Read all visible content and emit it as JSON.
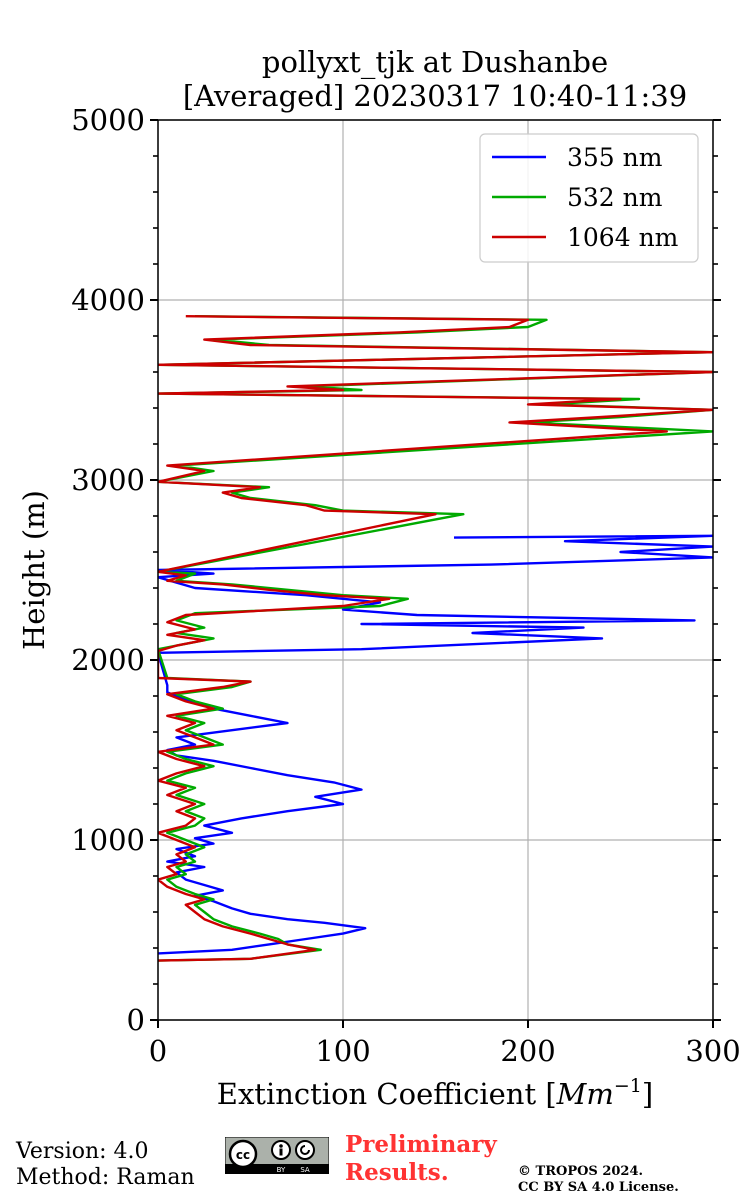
{
  "chart_data": {
    "type": "line",
    "title_line1": "pollyxt_tjk at Dushanbe",
    "title_line2": "[Averaged] 20230317 10:40-11:39",
    "xlabel": "Extinction Coefficient [",
    "xlabel_unit": "Mm",
    "xlabel_exp": "−1",
    "xlabel_close": "]",
    "ylabel": "Height (m)",
    "xlim": [
      0,
      300
    ],
    "ylim": [
      0,
      5000
    ],
    "xticks": [
      "0",
      "100",
      "200",
      "300"
    ],
    "yticks": [
      "0",
      "1000",
      "2000",
      "3000",
      "4000",
      "5000"
    ],
    "grid": true,
    "legend_position": "top-right",
    "series": [
      {
        "name": "355 nm",
        "color": "#0000ff",
        "points": [
          [
            0,
            370
          ],
          [
            40,
            390
          ],
          [
            60,
            420
          ],
          [
            80,
            450
          ],
          [
            100,
            480
          ],
          [
            112,
            510
          ],
          [
            90,
            540
          ],
          [
            70,
            560
          ],
          [
            50,
            590
          ],
          [
            40,
            620
          ],
          [
            30,
            660
          ],
          [
            20,
            690
          ],
          [
            35,
            720
          ],
          [
            25,
            750
          ],
          [
            15,
            780
          ],
          [
            10,
            820
          ],
          [
            25,
            850
          ],
          [
            5,
            880
          ],
          [
            20,
            910
          ],
          [
            10,
            950
          ],
          [
            30,
            980
          ],
          [
            20,
            1010
          ],
          [
            40,
            1040
          ],
          [
            25,
            1080
          ],
          [
            45,
            1120
          ],
          [
            70,
            1160
          ],
          [
            100,
            1200
          ],
          [
            85,
            1240
          ],
          [
            110,
            1280
          ],
          [
            95,
            1320
          ],
          [
            70,
            1360
          ],
          [
            50,
            1400
          ],
          [
            30,
            1440
          ],
          [
            10,
            1470
          ],
          [
            5,
            1500
          ],
          [
            20,
            1530
          ],
          [
            10,
            1570
          ],
          [
            40,
            1610
          ],
          [
            70,
            1650
          ],
          [
            50,
            1690
          ],
          [
            30,
            1730
          ],
          [
            15,
            1780
          ],
          [
            5,
            1820
          ],
          [
            5,
            1860
          ],
          [
            0,
            2040
          ],
          [
            110,
            2060
          ],
          [
            240,
            2120
          ],
          [
            170,
            2150
          ],
          [
            230,
            2180
          ],
          [
            110,
            2200
          ],
          [
            290,
            2220
          ],
          [
            140,
            2250
          ],
          [
            100,
            2280
          ],
          [
            120,
            2320
          ],
          [
            80,
            2360
          ],
          [
            20,
            2400
          ],
          [
            0,
            2460
          ],
          [
            30,
            2480
          ],
          [
            0,
            2500
          ],
          [
            180,
            2530
          ],
          [
            300,
            2570
          ],
          [
            250,
            2600
          ],
          [
            300,
            2630
          ],
          [
            220,
            2660
          ],
          [
            300,
            2690
          ],
          [
            160,
            2680
          ]
        ]
      },
      {
        "name": "532 nm",
        "color": "#00aa00",
        "points": [
          [
            0,
            330
          ],
          [
            50,
            340
          ],
          [
            88,
            390
          ],
          [
            70,
            420
          ],
          [
            65,
            450
          ],
          [
            55,
            480
          ],
          [
            40,
            520
          ],
          [
            30,
            560
          ],
          [
            25,
            600
          ],
          [
            20,
            640
          ],
          [
            30,
            670
          ],
          [
            20,
            700
          ],
          [
            10,
            740
          ],
          [
            5,
            780
          ],
          [
            15,
            810
          ],
          [
            10,
            850
          ],
          [
            20,
            880
          ],
          [
            15,
            920
          ],
          [
            25,
            960
          ],
          [
            15,
            1000
          ],
          [
            5,
            1040
          ],
          [
            20,
            1080
          ],
          [
            25,
            1120
          ],
          [
            15,
            1160
          ],
          [
            25,
            1200
          ],
          [
            10,
            1250
          ],
          [
            20,
            1290
          ],
          [
            5,
            1330
          ],
          [
            15,
            1370
          ],
          [
            30,
            1410
          ],
          [
            15,
            1450
          ],
          [
            5,
            1490
          ],
          [
            35,
            1530
          ],
          [
            25,
            1570
          ],
          [
            15,
            1610
          ],
          [
            25,
            1650
          ],
          [
            10,
            1690
          ],
          [
            35,
            1730
          ],
          [
            20,
            1770
          ],
          [
            10,
            1810
          ],
          [
            40,
            1850
          ],
          [
            50,
            1880
          ],
          [
            5,
            1900
          ],
          [
            0,
            2060
          ],
          [
            15,
            2090
          ],
          [
            30,
            2120
          ],
          [
            10,
            2150
          ],
          [
            25,
            2180
          ],
          [
            10,
            2220
          ],
          [
            20,
            2260
          ],
          [
            120,
            2300
          ],
          [
            135,
            2340
          ],
          [
            100,
            2360
          ],
          [
            70,
            2390
          ],
          [
            40,
            2420
          ],
          [
            10,
            2440
          ],
          [
            20,
            2480
          ],
          [
            0,
            2490
          ],
          [
            165,
            2810
          ],
          [
            100,
            2830
          ],
          [
            85,
            2860
          ],
          [
            50,
            2900
          ],
          [
            40,
            2930
          ],
          [
            60,
            2960
          ],
          [
            0,
            2990
          ],
          [
            30,
            3050
          ],
          [
            10,
            3080
          ],
          [
            300,
            3270
          ],
          [
            200,
            3320
          ],
          [
            250,
            3350
          ],
          [
            300,
            3390
          ],
          [
            210,
            3420
          ],
          [
            260,
            3450
          ],
          [
            0,
            3480
          ],
          [
            110,
            3500
          ],
          [
            80,
            3520
          ],
          [
            300,
            3600
          ],
          [
            0,
            3640
          ],
          [
            300,
            3710
          ],
          [
            60,
            3750
          ],
          [
            30,
            3780
          ],
          [
            140,
            3820
          ],
          [
            200,
            3850
          ],
          [
            210,
            3890
          ],
          [
            20,
            3910
          ]
        ]
      },
      {
        "name": "1064 nm",
        "color": "#cc0000",
        "points": [
          [
            0,
            330
          ],
          [
            50,
            340
          ],
          [
            85,
            390
          ],
          [
            70,
            420
          ],
          [
            60,
            450
          ],
          [
            50,
            480
          ],
          [
            35,
            520
          ],
          [
            25,
            560
          ],
          [
            20,
            600
          ],
          [
            15,
            640
          ],
          [
            25,
            670
          ],
          [
            15,
            700
          ],
          [
            5,
            740
          ],
          [
            0,
            780
          ],
          [
            10,
            810
          ],
          [
            5,
            850
          ],
          [
            15,
            880
          ],
          [
            10,
            920
          ],
          [
            20,
            960
          ],
          [
            10,
            1000
          ],
          [
            0,
            1040
          ],
          [
            15,
            1080
          ],
          [
            20,
            1120
          ],
          [
            10,
            1160
          ],
          [
            20,
            1200
          ],
          [
            5,
            1250
          ],
          [
            15,
            1290
          ],
          [
            0,
            1330
          ],
          [
            10,
            1370
          ],
          [
            25,
            1410
          ],
          [
            10,
            1450
          ],
          [
            0,
            1490
          ],
          [
            30,
            1530
          ],
          [
            20,
            1570
          ],
          [
            10,
            1610
          ],
          [
            20,
            1650
          ],
          [
            5,
            1690
          ],
          [
            30,
            1730
          ],
          [
            15,
            1770
          ],
          [
            5,
            1810
          ],
          [
            35,
            1850
          ],
          [
            50,
            1880
          ],
          [
            0,
            1900
          ],
          [
            0,
            2050
          ],
          [
            10,
            2080
          ],
          [
            25,
            2110
          ],
          [
            5,
            2140
          ],
          [
            20,
            2170
          ],
          [
            5,
            2210
          ],
          [
            15,
            2250
          ],
          [
            100,
            2300
          ],
          [
            125,
            2340
          ],
          [
            90,
            2360
          ],
          [
            60,
            2390
          ],
          [
            35,
            2420
          ],
          [
            5,
            2440
          ],
          [
            15,
            2470
          ],
          [
            0,
            2490
          ],
          [
            150,
            2810
          ],
          [
            90,
            2830
          ],
          [
            80,
            2860
          ],
          [
            45,
            2900
          ],
          [
            35,
            2930
          ],
          [
            55,
            2960
          ],
          [
            0,
            2990
          ],
          [
            25,
            3050
          ],
          [
            5,
            3080
          ],
          [
            275,
            3270
          ],
          [
            190,
            3320
          ],
          [
            240,
            3350
          ],
          [
            300,
            3390
          ],
          [
            200,
            3420
          ],
          [
            250,
            3450
          ],
          [
            0,
            3480
          ],
          [
            100,
            3500
          ],
          [
            70,
            3520
          ],
          [
            300,
            3600
          ],
          [
            0,
            3640
          ],
          [
            300,
            3710
          ],
          [
            50,
            3750
          ],
          [
            25,
            3780
          ],
          [
            130,
            3820
          ],
          [
            190,
            3850
          ],
          [
            200,
            3890
          ],
          [
            15,
            3910
          ]
        ]
      }
    ]
  },
  "footer": {
    "version": "Version: 4.0",
    "method": "Method: Raman",
    "cc_label": "cc",
    "by_label": "BY",
    "sa_label": "SA",
    "prelim_line1": "Preliminary",
    "prelim_line2": "Results.",
    "copyright_line1": "© TROPOS 2024.",
    "copyright_line2": "CC BY SA 4.0 License."
  }
}
